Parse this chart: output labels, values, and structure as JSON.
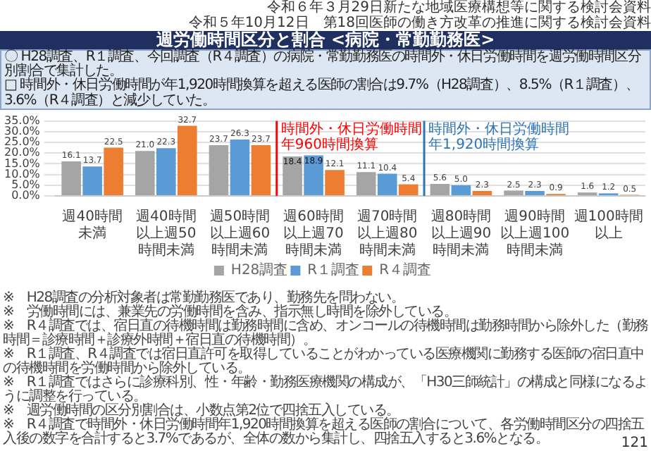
{
  "chart_data": {
    "type": "bar",
    "title": "週労働時間区分と割合 <病院・常勤勤務医>",
    "subtitle": "〇 H28調査、R１調査、今回調査（R４調査）の病院・常勤勤務医の時間外・休日労働時間を週労働時間区分別割合で集計した。\n□ 時間外・休日労働時間が年1,920時間換算を超える医師の割合は9.7%（H28調査）、8.5%（R１調査）、3.6%（R４調査）と減少していた。",
    "categories": [
      "週40時間未満",
      "週40時間以上週50時間未満",
      "週50時間以上週60時間未満",
      "週60時間以上週70時間未満",
      "週70時間以上週80時間未満",
      "週80時間以上週90時間未満",
      "週90時間以上週100時間未満",
      "週100時間以上"
    ],
    "series": [
      {
        "name": "H28調査",
        "color": "#a5a5a5",
        "values": [
          16.1,
          21.0,
          23.7,
          18.4,
          11.1,
          5.6,
          2.5,
          1.6
        ],
        "value_labels": [
          "16.1",
          "21.0",
          "23.7",
          "18.4",
          "11.1",
          "5.6",
          "2.5",
          "1.6"
        ]
      },
      {
        "name": "R１調査",
        "color": "#5b9bd5",
        "values": [
          13.7,
          22.3,
          26.3,
          18.9,
          10.4,
          5.0,
          2.3,
          1.2
        ],
        "value_labels": [
          "13.7",
          "22.3",
          "26.3",
          "18.9",
          "10.4",
          "5.0",
          "2.3",
          "1.2"
        ]
      },
      {
        "name": "R４調査",
        "color": "#ed7d31",
        "values": [
          22.5,
          32.7,
          23.7,
          12.1,
          5.4,
          2.3,
          0.9,
          0.5
        ]
      }
    ],
    "ylim": [
      0,
      35
    ],
    "yticks": [
      {
        "value": 0,
        "label": "0.0%"
      },
      {
        "value": 5,
        "label": "5.0%"
      },
      {
        "value": 10,
        "label": "10.0%"
      },
      {
        "value": 15,
        "label": "15.0%"
      },
      {
        "value": 20,
        "label": "20.0%"
      },
      {
        "value": 25,
        "label": "25.0%"
      },
      {
        "value": 30,
        "label": "30.0%"
      },
      {
        "value": 35,
        "label": "35.0%"
      }
    ],
    "grid": "y",
    "legend": "bottom",
    "data_labels": true,
    "ref_lines": [
      {
        "axis": "x",
        "value": "週60時間以上週70時間未満",
        "label": "時間外・休日労働時間年960時間換算",
        "color": "#ff0000"
      },
      {
        "axis": "x",
        "value": "週80時間以上週90時間未満",
        "label": "時間外・休日労働時間年1,920時間換算",
        "color": "#2e75b6"
      }
    ],
    "annotations": [
      "令和６年３月29日新たな地域医療構想等に関する検討会資料",
      "令和５年10月12日　第18回医師の働き方改革の推進に関する検討会資料",
      "※　H28調査の分析対象者は常勤勤務医であり、勤務先を問わない。",
      "※　労働時間には、兼業先の労働時間を含み、指示無し時間を除外している。",
      "※　R４調査では、宿日直の待機時間は勤務時間に含め、オンコールの待機時間は勤務時間から除外した（勤務時間＝診療時間＋診療外時間＋宿日直の待機時間）。",
      "※　R１調査、R４調査では宿日直許可を取得していることがわかっている医療機関に勤務する医師の宿日直中の待機時間を労働時間から除外している。",
      "※　R１調査ではさらに診療科別、性・年齢・勤務医療機関の構成が、「H30三師統計」の構成と同様になるように調整を行っている。",
      "※　週労働時間の区分別割合は、小数点第2位で四捨五入している。",
      "※　R４調査で時間外・休日労働時間年1,920時間換算を超える医師の割合について、各労働時間区分の四捨五入後の数字を合計すると3.7%であるが、全体の数から集計し、四捨五入すると3.6%となる。",
      "121"
    ]
  }
}
